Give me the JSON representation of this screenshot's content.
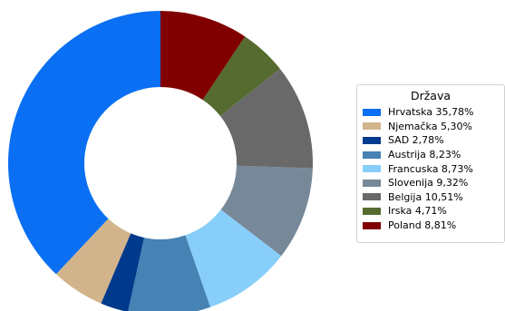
{
  "chart_data": {
    "type": "pie",
    "donut": true,
    "legend_title": "Država",
    "legend_position": "right",
    "series": [
      {
        "name": "Hrvatska",
        "value": 35.78,
        "label": "Hrvatska 35,78%",
        "color": "#0a6ff2"
      },
      {
        "name": "Njemačka",
        "value": 5.3,
        "label": "Njemačka 5,30%",
        "color": "#d2b48c"
      },
      {
        "name": "SAD",
        "value": 2.78,
        "label": "SAD 2,78%",
        "color": "#003a8c"
      },
      {
        "name": "Austrija",
        "value": 8.23,
        "label": "Austrija 8,23%",
        "color": "#4682b4"
      },
      {
        "name": "Francuska",
        "value": 8.73,
        "label": "Francuska 8,73%",
        "color": "#87cefa"
      },
      {
        "name": "Slovenija",
        "value": 9.32,
        "label": "Slovenija 9,32%",
        "color": "#778899"
      },
      {
        "name": "Belgija",
        "value": 10.51,
        "label": "Belgija 10,51%",
        "color": "#696969"
      },
      {
        "name": "Irska",
        "value": 4.71,
        "label": "Irska 4,71%",
        "color": "#556b2f"
      },
      {
        "name": "Poland",
        "value": 8.81,
        "label": "Poland 8,81%",
        "color": "#800000"
      }
    ]
  }
}
